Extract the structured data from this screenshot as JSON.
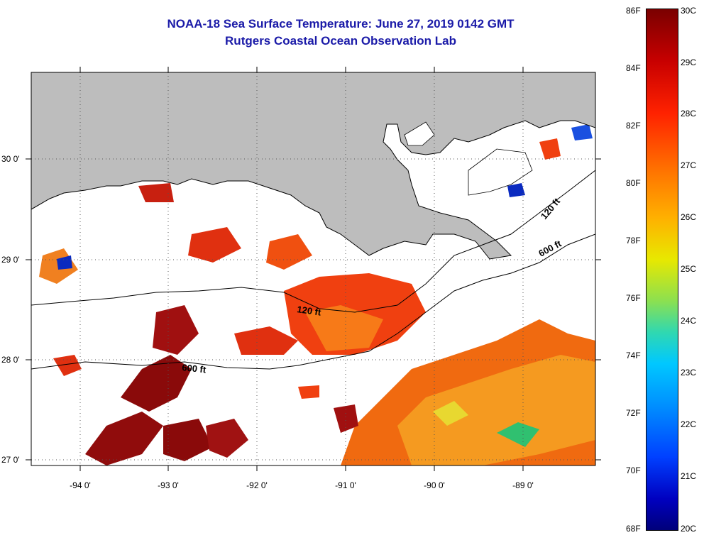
{
  "header": {
    "title": "NOAA-18 Sea Surface Temperature:  June 27, 2019 0142 GMT",
    "subtitle": "Rutgers Coastal Ocean Observation Lab"
  },
  "map": {
    "lon_labels": [
      "-94 0'",
      "-93 0'",
      "-92 0'",
      "-91 0'",
      "-90 0'",
      "-89 0'"
    ],
    "lat_labels": [
      "30 0'",
      "29 0'",
      "28 0'",
      "27 0'"
    ],
    "contour_labels": [
      "120 ft",
      "600 ft",
      "120 ft",
      "600 ft"
    ],
    "colors": {
      "land": "#bdbdbd",
      "ocean_nodata": "#ffffff",
      "grid": "#555555"
    }
  },
  "colorbar": {
    "fahrenheit": [
      "86F",
      "84F",
      "82F",
      "80F",
      "78F",
      "76F",
      "74F",
      "72F",
      "70F",
      "68F"
    ],
    "celsius": [
      "30C",
      "29C",
      "28C",
      "27C",
      "26C",
      "25C",
      "24C",
      "23C",
      "22C",
      "21C",
      "20C"
    ]
  }
}
